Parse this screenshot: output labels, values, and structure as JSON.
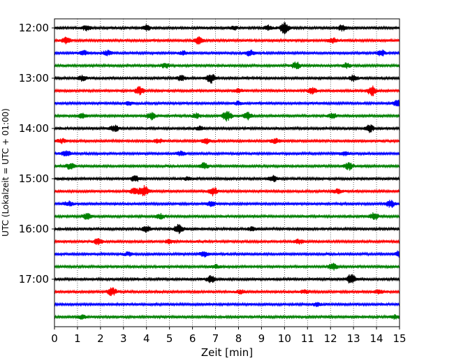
{
  "chart_data": {
    "type": "line",
    "xlabel": "Zeit  [min]",
    "ylabel": "UTC (Lokalzeit = UTC + 01:00)",
    "xlim": [
      0,
      15
    ],
    "x_ticks": [
      "0",
      "1",
      "2",
      "3",
      "4",
      "5",
      "6",
      "7",
      "8",
      "9",
      "10",
      "11",
      "12",
      "13",
      "14",
      "15"
    ],
    "y_ticks": [
      "12:00",
      "13:00",
      "14:00",
      "15:00",
      "16:00",
      "17:00"
    ],
    "grid": "vertical dotted",
    "row_interval_min": 15,
    "trace_colors": [
      "#000000",
      "#ff0000",
      "#0000ff",
      "#008000"
    ],
    "series": [
      {
        "start": "12:00",
        "events": [
          [
            1.4,
            0.4
          ],
          [
            4.0,
            0.5
          ],
          [
            7.8,
            0.3
          ],
          [
            9.3,
            0.4
          ],
          [
            10.0,
            1.0
          ],
          [
            12.5,
            0.5
          ]
        ]
      },
      {
        "start": "12:15",
        "events": [
          [
            0.5,
            0.5
          ],
          [
            6.3,
            0.7
          ],
          [
            12.1,
            0.4
          ]
        ]
      },
      {
        "start": "12:30",
        "events": [
          [
            1.3,
            0.4
          ],
          [
            2.3,
            0.4
          ],
          [
            5.6,
            0.3
          ],
          [
            8.5,
            0.5
          ],
          [
            14.2,
            0.5
          ]
        ]
      },
      {
        "start": "12:45",
        "events": [
          [
            4.8,
            0.4
          ],
          [
            10.5,
            0.6
          ],
          [
            12.7,
            0.4
          ]
        ]
      },
      {
        "start": "13:00",
        "events": [
          [
            1.2,
            0.4
          ],
          [
            5.5,
            0.4
          ],
          [
            6.8,
            0.8
          ],
          [
            13.0,
            0.5
          ]
        ]
      },
      {
        "start": "13:15",
        "events": [
          [
            3.7,
            0.7
          ],
          [
            8.0,
            0.3
          ],
          [
            11.2,
            0.5
          ],
          [
            13.8,
            0.9
          ]
        ]
      },
      {
        "start": "13:30",
        "events": [
          [
            3.2,
            0.3
          ],
          [
            8.0,
            0.3
          ],
          [
            14.9,
            0.5
          ]
        ]
      },
      {
        "start": "13:45",
        "events": [
          [
            1.2,
            0.4
          ],
          [
            4.2,
            0.6
          ],
          [
            6.2,
            0.4
          ],
          [
            7.5,
            0.9
          ],
          [
            8.4,
            0.6
          ],
          [
            12.1,
            0.4
          ]
        ]
      },
      {
        "start": "14:00",
        "events": [
          [
            2.6,
            0.6
          ],
          [
            6.3,
            0.3
          ],
          [
            13.7,
            0.6
          ]
        ]
      },
      {
        "start": "14:15",
        "events": [
          [
            0.3,
            0.4
          ],
          [
            4.5,
            0.4
          ],
          [
            6.6,
            0.5
          ],
          [
            9.6,
            0.4
          ]
        ]
      },
      {
        "start": "14:30",
        "events": [
          [
            0.5,
            0.5
          ],
          [
            5.5,
            0.4
          ],
          [
            12.6,
            0.3
          ]
        ]
      },
      {
        "start": "14:45",
        "events": [
          [
            0.7,
            0.5
          ],
          [
            6.5,
            0.5
          ],
          [
            12.8,
            0.6
          ]
        ]
      },
      {
        "start": "15:00",
        "events": [
          [
            3.5,
            0.5
          ],
          [
            5.8,
            0.3
          ],
          [
            9.5,
            0.5
          ]
        ]
      },
      {
        "start": "15:15",
        "events": [
          [
            3.5,
            0.6
          ],
          [
            3.9,
            0.9
          ],
          [
            6.9,
            0.7
          ],
          [
            12.3,
            0.4
          ]
        ]
      },
      {
        "start": "15:30",
        "events": [
          [
            0.6,
            0.4
          ],
          [
            6.8,
            0.4
          ],
          [
            14.6,
            0.6
          ]
        ]
      },
      {
        "start": "15:45",
        "events": [
          [
            1.4,
            0.5
          ],
          [
            4.6,
            0.4
          ],
          [
            13.9,
            0.6
          ]
        ]
      },
      {
        "start": "16:00",
        "events": [
          [
            4.0,
            0.5
          ],
          [
            5.4,
            0.8
          ],
          [
            8.6,
            0.3
          ]
        ]
      },
      {
        "start": "16:15",
        "events": [
          [
            1.9,
            0.5
          ],
          [
            5.0,
            0.3
          ],
          [
            10.6,
            0.4
          ]
        ]
      },
      {
        "start": "16:30",
        "events": [
          [
            3.2,
            0.3
          ],
          [
            6.5,
            0.5
          ],
          [
            15.0,
            0.5
          ]
        ]
      },
      {
        "start": "16:45",
        "events": [
          [
            7.0,
            0.3
          ],
          [
            12.1,
            0.6
          ]
        ]
      },
      {
        "start": "17:00",
        "events": [
          [
            6.8,
            0.6
          ],
          [
            12.9,
            0.9
          ]
        ]
      },
      {
        "start": "17:15",
        "events": [
          [
            2.5,
            0.7
          ],
          [
            8.1,
            0.3
          ],
          [
            10.9,
            0.3
          ],
          [
            14.1,
            0.3
          ]
        ]
      },
      {
        "start": "17:30",
        "events": [
          [
            11.4,
            0.3
          ]
        ]
      },
      {
        "start": "17:45",
        "events": [
          [
            1.2,
            0.3
          ],
          [
            14.8,
            0.3
          ]
        ]
      }
    ]
  }
}
